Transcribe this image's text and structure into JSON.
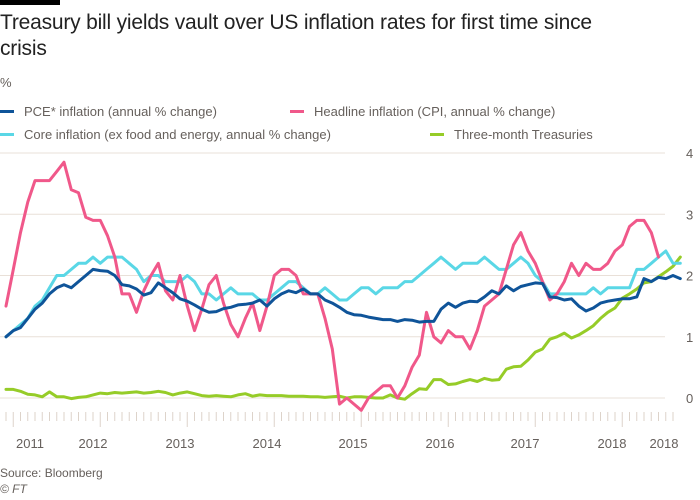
{
  "chart_data": {
    "type": "line",
    "title": "Treasury bill yields vault over US inflation rates for first time since crisis",
    "ylabel": "%",
    "xlabel": "",
    "ylim": [
      0,
      4
    ],
    "yticks": [
      "0",
      "1",
      "2",
      "3",
      "4"
    ],
    "grid": true,
    "legend_position": "top",
    "x_start": "2010-12",
    "x_tick_labels": [
      "2011",
      "2012",
      "2013",
      "2014",
      "2015",
      "2016",
      "2017",
      "2018",
      "2018"
    ],
    "series": [
      {
        "name": "PCE* inflation (annual % change)",
        "color": "#0f5499",
        "values": [
          1.0,
          1.1,
          1.15,
          1.3,
          1.45,
          1.55,
          1.7,
          1.8,
          1.85,
          1.8,
          1.9,
          2.0,
          2.1,
          2.08,
          2.07,
          2.0,
          1.85,
          1.83,
          1.78,
          1.68,
          1.72,
          1.88,
          1.8,
          1.72,
          1.62,
          1.58,
          1.52,
          1.45,
          1.4,
          1.41,
          1.46,
          1.48,
          1.52,
          1.53,
          1.55,
          1.6,
          1.5,
          1.62,
          1.7,
          1.75,
          1.72,
          1.78,
          1.7,
          1.7,
          1.6,
          1.55,
          1.48,
          1.4,
          1.36,
          1.35,
          1.32,
          1.3,
          1.28,
          1.28,
          1.25,
          1.28,
          1.27,
          1.24,
          1.25,
          1.25,
          1.45,
          1.55,
          1.48,
          1.55,
          1.58,
          1.57,
          1.65,
          1.75,
          1.7,
          1.83,
          1.75,
          1.82,
          1.85,
          1.88,
          1.87,
          1.65,
          1.64,
          1.6,
          1.62,
          1.5,
          1.42,
          1.47,
          1.55,
          1.58,
          1.6,
          1.62,
          1.62,
          1.65,
          1.95,
          1.9,
          1.97,
          1.95,
          2.0,
          1.95
        ]
      },
      {
        "name": "Headline inflation (CPI, annual % change)",
        "color": "#f0588a",
        "values": [
          1.5,
          2.1,
          2.7,
          3.2,
          3.55,
          3.55,
          3.55,
          3.7,
          3.85,
          3.4,
          3.35,
          2.95,
          2.9,
          2.9,
          2.65,
          2.3,
          1.7,
          1.7,
          1.4,
          1.75,
          2.0,
          2.2,
          1.75,
          1.6,
          2.0,
          1.5,
          1.1,
          1.45,
          1.85,
          2.0,
          1.55,
          1.2,
          1.0,
          1.3,
          1.55,
          1.1,
          1.5,
          2.0,
          2.1,
          2.1,
          2.0,
          1.7,
          1.7,
          1.7,
          1.3,
          0.8,
          -0.1,
          0.0,
          -0.1,
          -0.2,
          0.0,
          0.1,
          0.2,
          0.2,
          0.0,
          0.2,
          0.5,
          0.7,
          1.4,
          1.0,
          0.9,
          1.1,
          1.0,
          1.0,
          0.8,
          1.1,
          1.5,
          1.6,
          1.7,
          2.1,
          2.5,
          2.7,
          2.4,
          2.2,
          1.9,
          1.6,
          1.7,
          1.9,
          2.2,
          2.0,
          2.2,
          2.1,
          2.1,
          2.2,
          2.4,
          2.5,
          2.8,
          2.9,
          2.9,
          2.7,
          2.3
        ]
      },
      {
        "name": "Core inflation (ex food and energy, annual % change)",
        "color": "#5ad7e6",
        "values": [
          1.0,
          1.1,
          1.2,
          1.3,
          1.5,
          1.6,
          1.8,
          2.0,
          2.0,
          2.1,
          2.2,
          2.2,
          2.3,
          2.2,
          2.3,
          2.3,
          2.3,
          2.2,
          2.1,
          1.9,
          2.0,
          2.0,
          1.9,
          1.9,
          1.9,
          2.0,
          1.9,
          1.7,
          1.7,
          1.6,
          1.7,
          1.8,
          1.7,
          1.7,
          1.7,
          1.6,
          1.6,
          1.7,
          1.8,
          1.9,
          1.9,
          1.8,
          1.7,
          1.7,
          1.8,
          1.7,
          1.6,
          1.6,
          1.7,
          1.8,
          1.8,
          1.7,
          1.8,
          1.8,
          1.8,
          1.9,
          1.9,
          2.0,
          2.1,
          2.2,
          2.3,
          2.2,
          2.1,
          2.2,
          2.2,
          2.2,
          2.3,
          2.2,
          2.1,
          2.1,
          2.2,
          2.3,
          2.2,
          2.0,
          1.9,
          1.7,
          1.7,
          1.7,
          1.7,
          1.7,
          1.7,
          1.8,
          1.7,
          1.8,
          1.8,
          1.8,
          1.8,
          2.1,
          2.1,
          2.2,
          2.3,
          2.4,
          2.2,
          2.2
        ]
      },
      {
        "name": "Three-month Treasuries",
        "color": "#96cc28",
        "values": [
          0.14,
          0.14,
          0.11,
          0.06,
          0.05,
          0.02,
          0.1,
          0.02,
          0.02,
          -0.01,
          0.01,
          0.02,
          0.05,
          0.08,
          0.07,
          0.09,
          0.08,
          0.09,
          0.1,
          0.08,
          0.09,
          0.11,
          0.09,
          0.05,
          0.08,
          0.1,
          0.07,
          0.04,
          0.03,
          0.04,
          0.03,
          0.02,
          0.05,
          0.07,
          0.03,
          0.05,
          0.04,
          0.04,
          0.04,
          0.03,
          0.03,
          0.03,
          0.02,
          0.02,
          0.01,
          0.02,
          0.03,
          0.0,
          0.02,
          0.02,
          0.01,
          0.0,
          0.0,
          0.05,
          0.0,
          -0.02,
          0.07,
          0.15,
          0.14,
          0.3,
          0.3,
          0.22,
          0.23,
          0.27,
          0.3,
          0.27,
          0.32,
          0.29,
          0.3,
          0.47,
          0.51,
          0.52,
          0.62,
          0.75,
          0.8,
          0.96,
          1.0,
          1.06,
          0.98,
          1.03,
          1.1,
          1.18,
          1.3,
          1.4,
          1.47,
          1.63,
          1.7,
          1.78,
          1.88,
          1.9,
          1.98,
          2.06,
          2.15,
          2.3
        ]
      }
    ]
  },
  "header": {
    "title": "Treasury bill yields vault over US inflation rates for first time since crisis",
    "unit": "%"
  },
  "footer": {
    "source": "Source: Bloomberg",
    "copyright": "© FT"
  }
}
